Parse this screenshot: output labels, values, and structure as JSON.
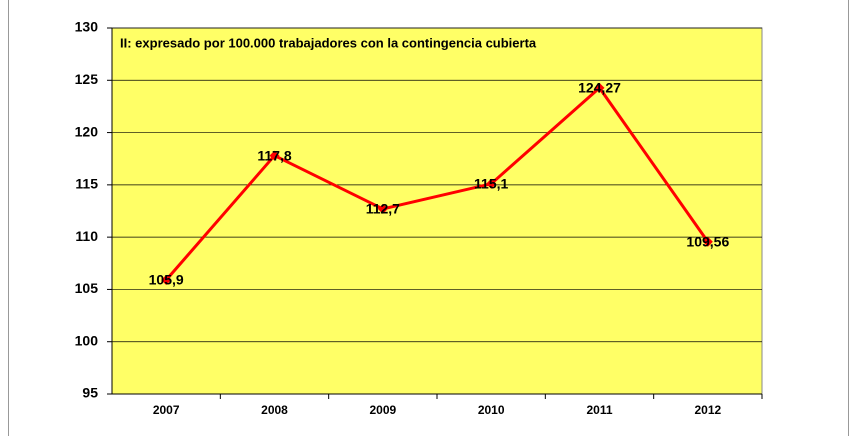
{
  "chart_data": {
    "type": "line",
    "title": "II: expresado por 100.000 trabajadores con la contingencia cubierta",
    "categories": [
      "2007",
      "2008",
      "2009",
      "2010",
      "2011",
      "2012"
    ],
    "series": [
      {
        "name": "II",
        "color": "#ff0000",
        "values": [
          105.9,
          117.8,
          112.7,
          115.1,
          124.27,
          109.56
        ],
        "value_labels": [
          "105,9",
          "117,8",
          "112,7",
          "115,1",
          "124,27",
          "109,56"
        ]
      }
    ],
    "ylim": [
      95,
      130
    ],
    "yticks": [
      95,
      100,
      105,
      110,
      115,
      120,
      125,
      130
    ],
    "grid": true,
    "plot_background": "#ffff66"
  }
}
